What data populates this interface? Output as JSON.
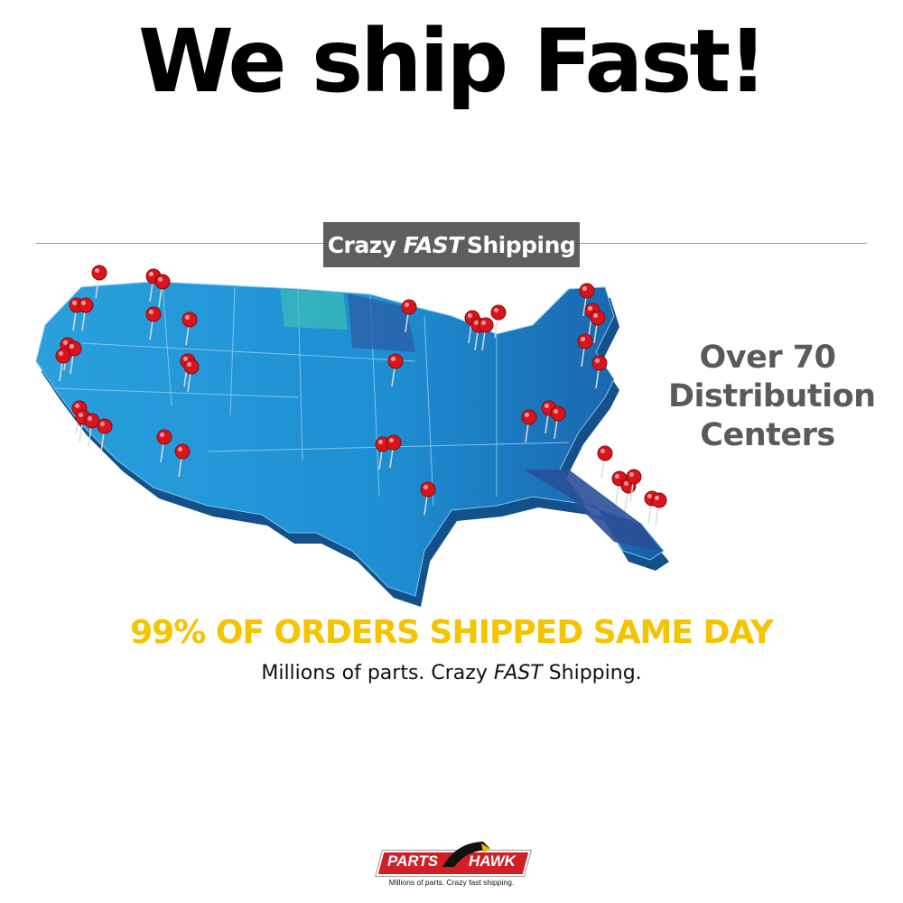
{
  "headline": "We ship Fast!",
  "banner": {
    "part1": "Crazy",
    "part2": "FAST",
    "part3": "Shipping"
  },
  "distribution": {
    "line1": "Over 70",
    "line2": "Distribution",
    "line3": "Centers"
  },
  "same_day": "99% OF ORDERS SHIPPED SAME DAY",
  "tagline": {
    "part1": "Millions of parts. Crazy",
    "part2": "FAST",
    "part3": "Shipping."
  },
  "logo": {
    "left": "PARTS",
    "right": "HAWK",
    "slogan": "Millions of parts. Crazy fast shipping."
  },
  "colors": {
    "banner": "#5e5e5e",
    "same_day": "#f5c400",
    "pin": "#d8141c",
    "map": "#2a9ad8",
    "logo_red": "#d21f26"
  }
}
